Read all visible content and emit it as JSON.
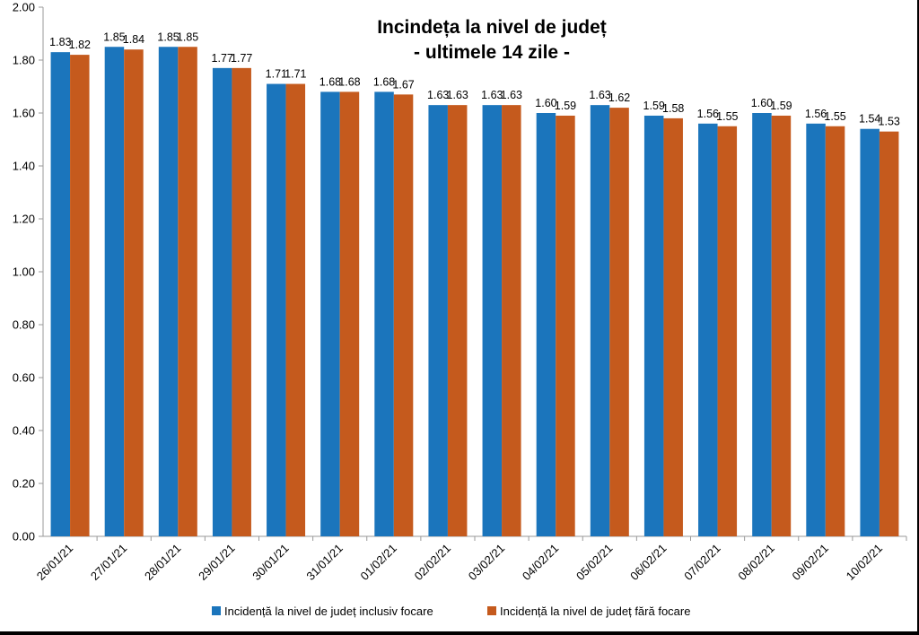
{
  "chart_data": {
    "type": "bar",
    "title": "Incindeța la nivel de județ",
    "subtitle": "- ultimele 14 zile -",
    "categories": [
      "26/01/21",
      "27/01/21",
      "28/01/21",
      "29/01/21",
      "30/01/21",
      "31/01/21",
      "01/02/21",
      "02/02/21",
      "03/02/21",
      "04/02/21",
      "05/02/21",
      "06/02/21",
      "07/02/21",
      "08/02/21",
      "09/02/21",
      "10/02/21"
    ],
    "series": [
      {
        "name": "Incidență la nivel de județ inclusiv focare",
        "color": "#1b75bc",
        "values": [
          1.83,
          1.85,
          1.85,
          1.77,
          1.71,
          1.68,
          1.68,
          1.63,
          1.63,
          1.6,
          1.63,
          1.59,
          1.56,
          1.6,
          1.56,
          1.54
        ]
      },
      {
        "name": "Incidență la nivel de județ fără focare",
        "color": "#c55a1d",
        "values": [
          1.82,
          1.84,
          1.85,
          1.77,
          1.71,
          1.68,
          1.67,
          1.63,
          1.63,
          1.59,
          1.62,
          1.58,
          1.55,
          1.59,
          1.55,
          1.53
        ]
      }
    ],
    "ylim": [
      0,
      2.0
    ],
    "yticks": [
      "0.00",
      "0.20",
      "0.40",
      "0.60",
      "0.80",
      "1.00",
      "1.20",
      "1.40",
      "1.60",
      "1.80",
      "2.00"
    ],
    "grid": false,
    "legend_position": "bottom"
  }
}
